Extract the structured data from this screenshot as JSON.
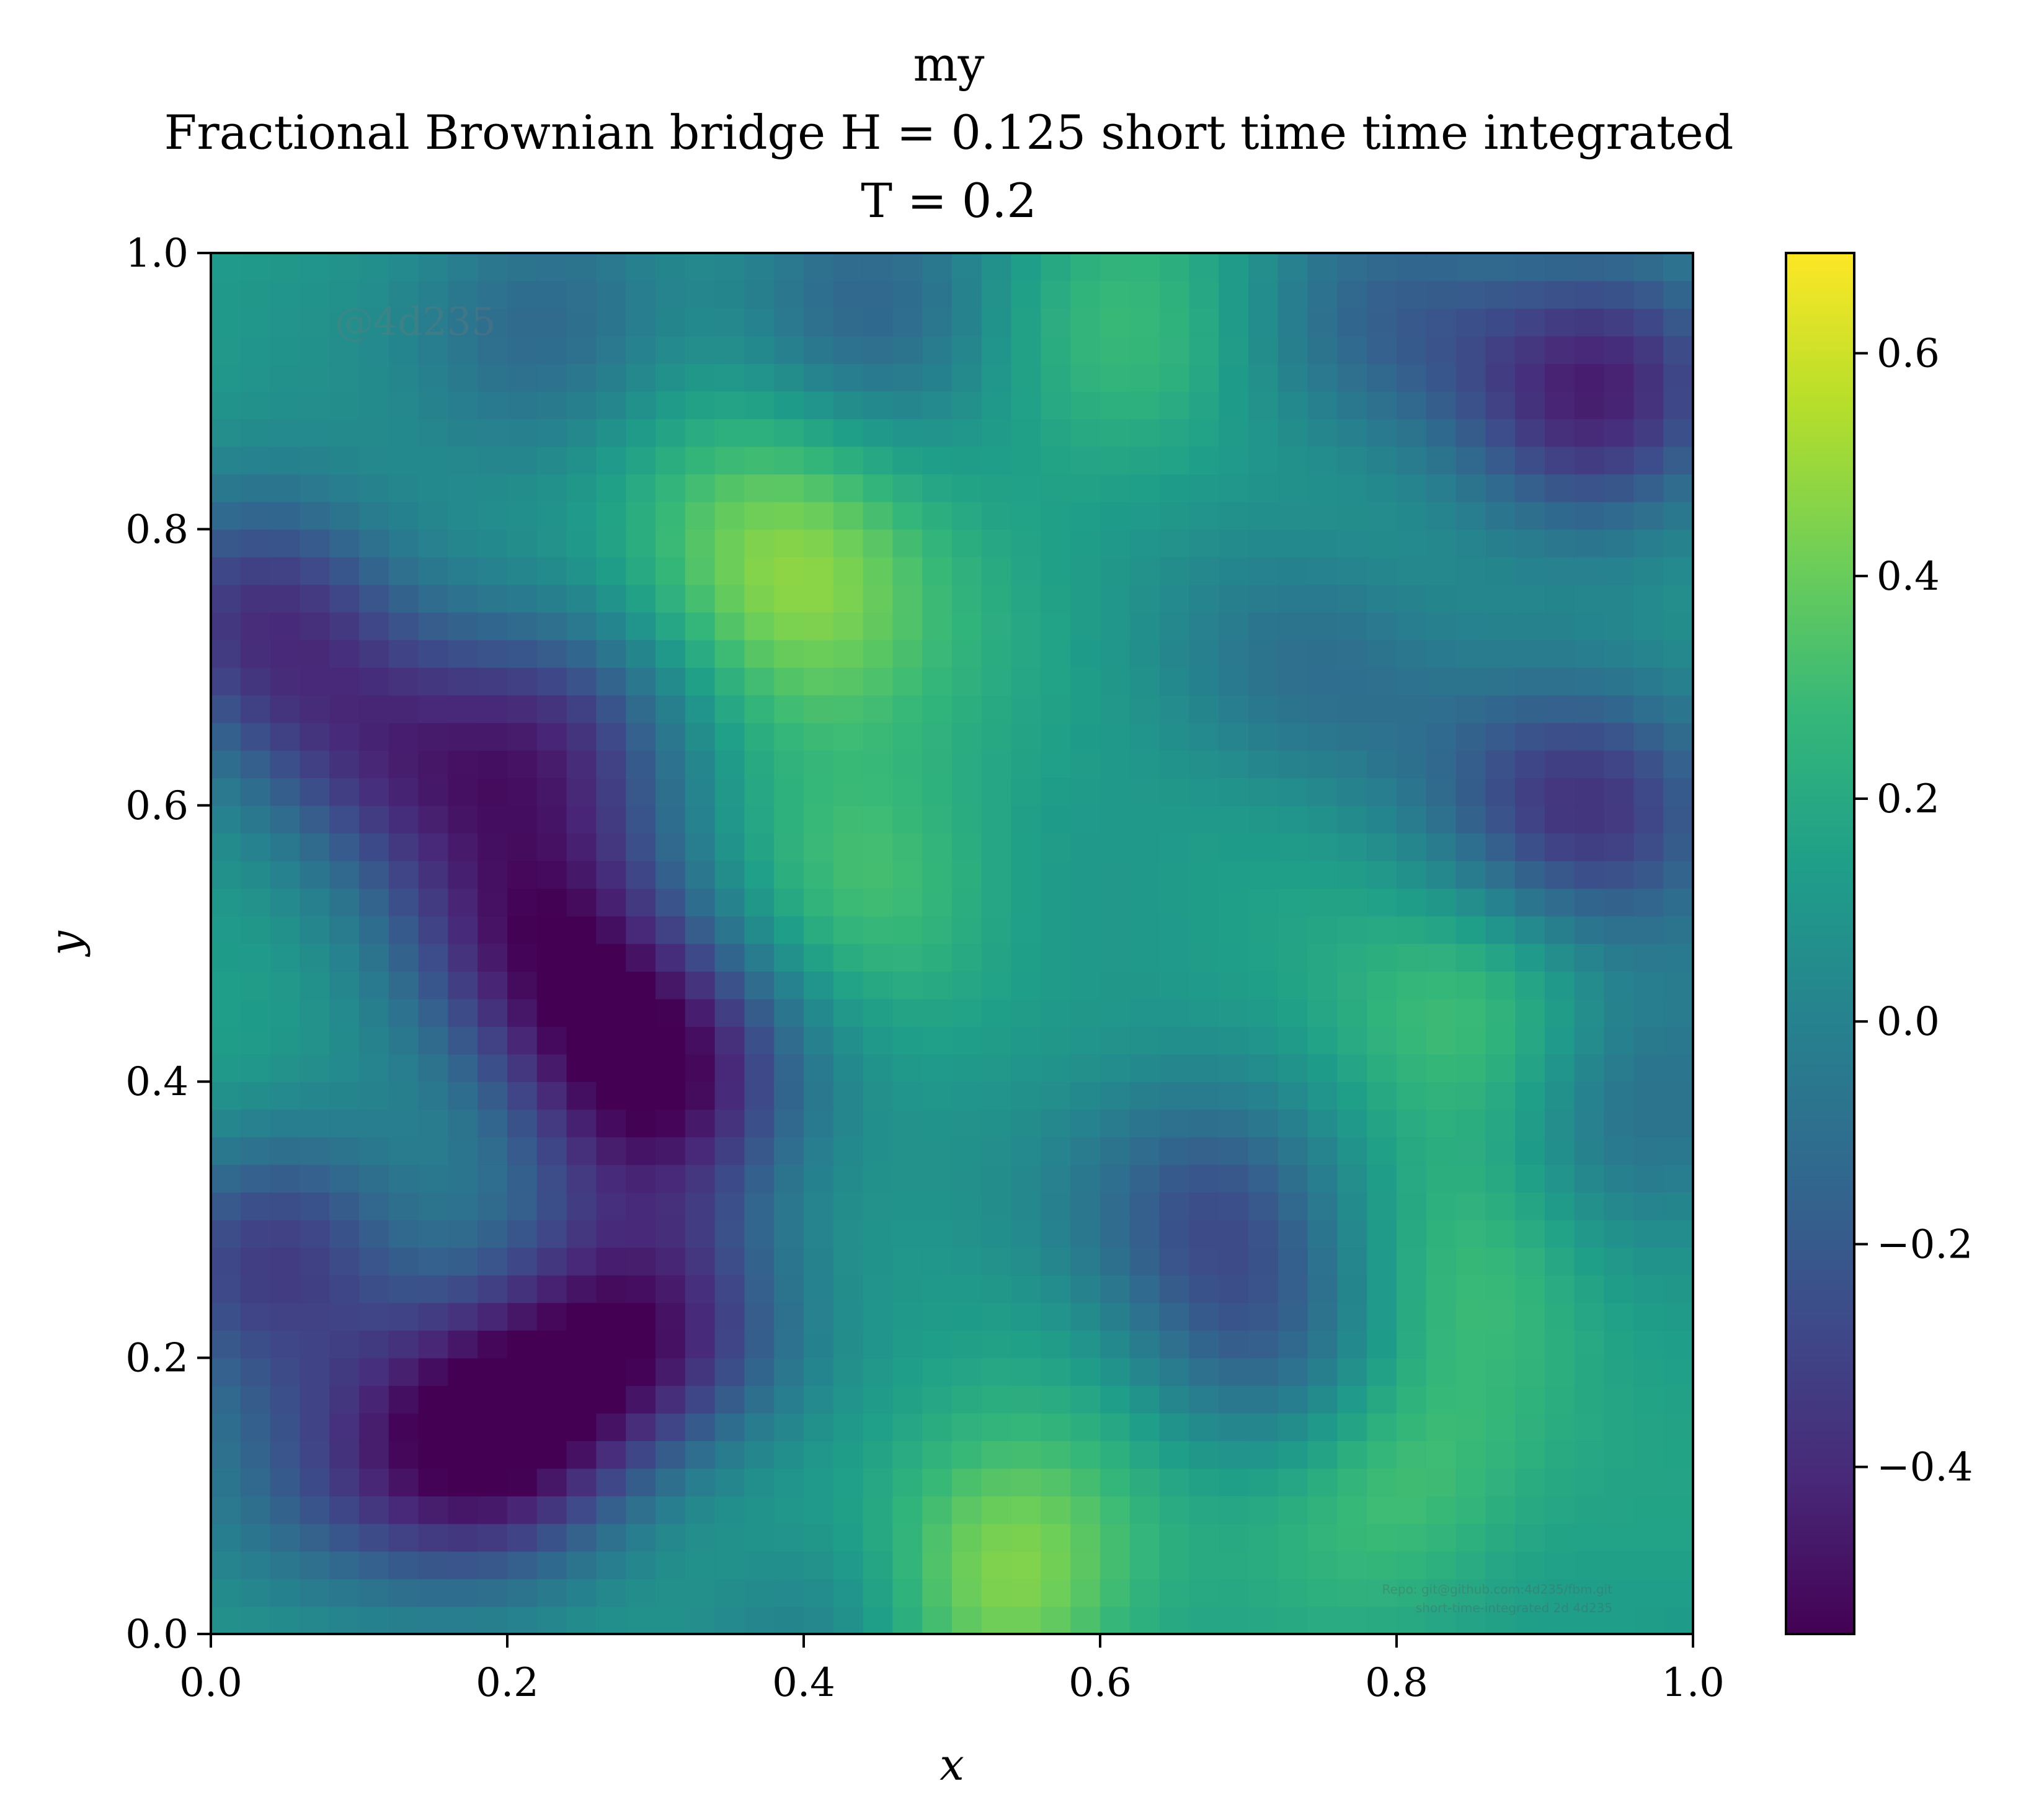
{
  "chart_data": {
    "type": "heatmap",
    "title_lines": [
      "my",
      "Fractional Brownian bridge H = 0.125 short time time integrated",
      "T = 0.2"
    ],
    "xlabel": "x",
    "ylabel": "y",
    "xlim": [
      0.0,
      1.0
    ],
    "ylim": [
      0.0,
      1.0
    ],
    "xticks": [
      0.0,
      0.2,
      0.4,
      0.6,
      0.8,
      1.0
    ],
    "xtick_labels": [
      "0.0",
      "0.2",
      "0.4",
      "0.6",
      "0.8",
      "1.0"
    ],
    "yticks": [
      0.0,
      0.2,
      0.4,
      0.6,
      0.8,
      1.0
    ],
    "ytick_labels": [
      "0.0",
      "0.2",
      "0.4",
      "0.6",
      "0.8",
      "1.0"
    ],
    "colorbar": {
      "colormap": "viridis",
      "range": [
        -0.55,
        0.69
      ],
      "ticks": [
        -0.4,
        -0.2,
        0.0,
        0.2,
        0.4,
        0.6
      ],
      "tick_labels": [
        "−0.4",
        "−0.2",
        "0.0",
        "0.2",
        "0.4",
        "0.6"
      ]
    },
    "grid": {
      "nx": 50,
      "ny": 50,
      "baseline": 0.13,
      "features": [
        {
          "x": 0.53,
          "y": 0.04,
          "value": 0.5
        },
        {
          "x": 0.4,
          "y": 0.08,
          "value": 0.3
        },
        {
          "x": 0.8,
          "y": 0.12,
          "value": 0.36
        },
        {
          "x": 0.65,
          "y": 0.15,
          "value": 0.2
        },
        {
          "x": 0.86,
          "y": 0.27,
          "value": 0.3
        },
        {
          "x": 0.85,
          "y": 0.45,
          "value": 0.32
        },
        {
          "x": 0.75,
          "y": 0.4,
          "value": 0.18
        },
        {
          "x": 0.43,
          "y": 0.55,
          "value": 0.3
        },
        {
          "x": 0.4,
          "y": 0.72,
          "value": 0.36
        },
        {
          "x": 0.4,
          "y": 0.8,
          "value": 0.3
        },
        {
          "x": 0.28,
          "y": 0.78,
          "value": 0.2
        },
        {
          "x": 0.35,
          "y": 0.9,
          "value": 0.16
        },
        {
          "x": 0.36,
          "y": 0.99,
          "value": 0.24
        },
        {
          "x": 0.62,
          "y": 0.96,
          "value": 0.28
        },
        {
          "x": 0.09,
          "y": 0.92,
          "value": 0.14
        },
        {
          "x": 0.04,
          "y": 0.39,
          "value": 0.2
        },
        {
          "x": 0.94,
          "y": 0.77,
          "value": 0.14
        },
        {
          "x": 0.19,
          "y": 0.15,
          "value": -0.55
        },
        {
          "x": 0.3,
          "y": 0.4,
          "value": -0.5
        },
        {
          "x": 0.22,
          "y": 0.5,
          "value": -0.4
        },
        {
          "x": 0.24,
          "y": 0.65,
          "value": -0.32
        },
        {
          "x": 0.3,
          "y": 0.22,
          "value": -0.38
        },
        {
          "x": 0.93,
          "y": 0.6,
          "value": -0.38
        },
        {
          "x": 0.94,
          "y": 0.9,
          "value": -0.42
        },
        {
          "x": 0.04,
          "y": 0.74,
          "value": -0.32
        },
        {
          "x": 0.04,
          "y": 0.28,
          "value": -0.32
        },
        {
          "x": 0.67,
          "y": 0.32,
          "value": -0.22
        },
        {
          "x": 0.11,
          "y": 0.63,
          "value": -0.22
        },
        {
          "x": 0.22,
          "y": 0.95,
          "value": -0.16
        },
        {
          "x": 0.43,
          "y": 0.97,
          "value": -0.22
        },
        {
          "x": 0.75,
          "y": 0.7,
          "value": -0.1
        },
        {
          "x": 0.72,
          "y": 0.2,
          "value": -0.16
        },
        {
          "x": 0.96,
          "y": 0.38,
          "value": -0.12
        },
        {
          "x": 0.08,
          "y": 0.1,
          "value": -0.12
        },
        {
          "x": 0.42,
          "y": 0.03,
          "value": -0.16
        },
        {
          "x": 0.8,
          "y": 0.96,
          "value": -0.14
        }
      ]
    },
    "annotations": {
      "watermark": "@4d235",
      "footer_lines": [
        "Repo: git@github.com:4d235/fbm.git",
        "short-time-integrated 2d 4d235"
      ]
    },
    "colors": {
      "axis": "#000000",
      "background": "#ffffff"
    }
  }
}
